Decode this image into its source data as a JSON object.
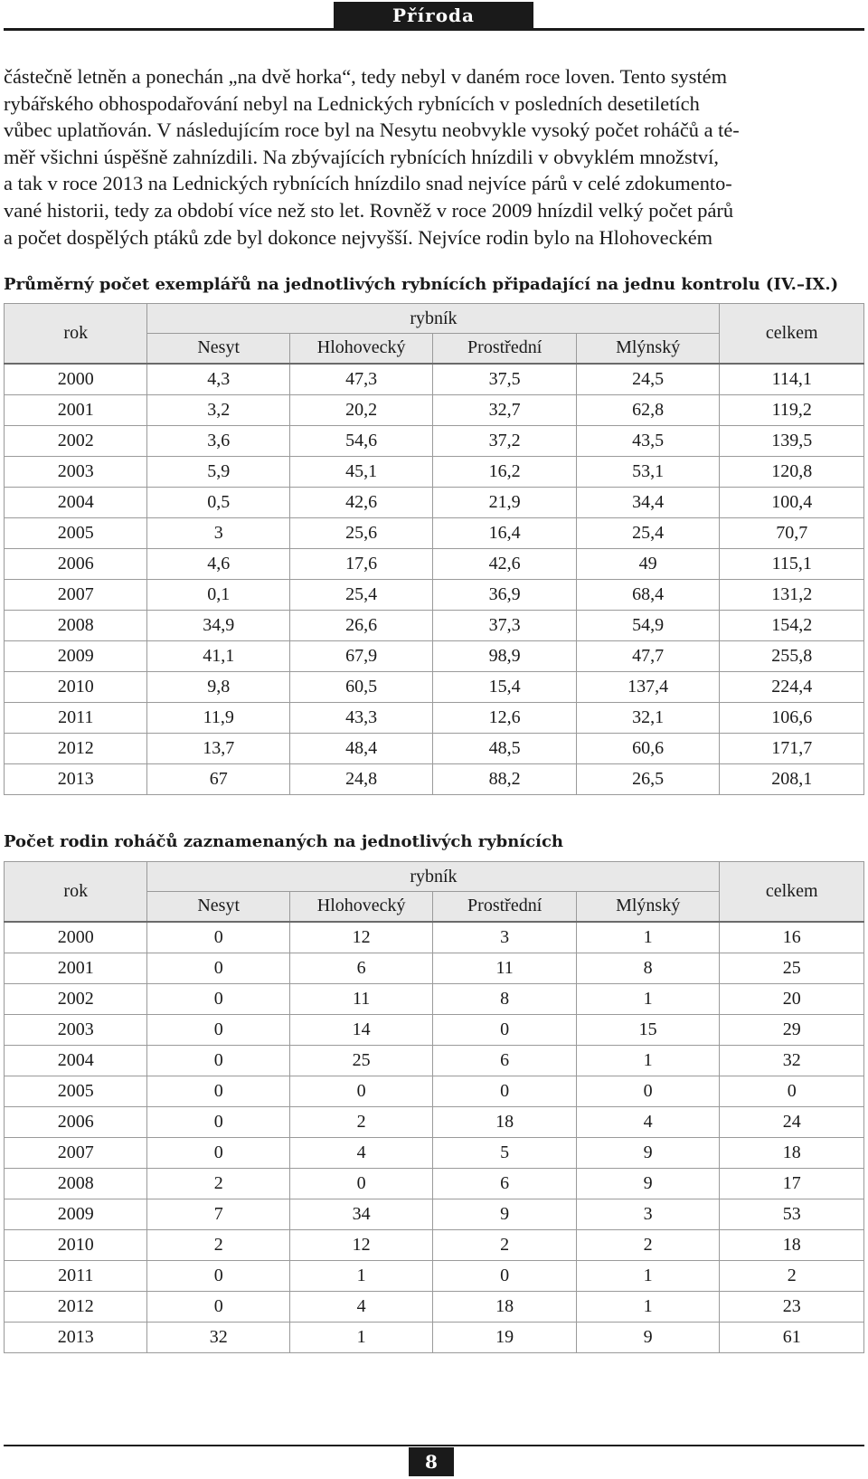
{
  "header": {
    "section_title": "Příroda"
  },
  "body_text": {
    "lines": [
      "částečně letněn a ponechán „na dvě horka“, tedy nebyl v daném roce loven. Tento systém",
      "rybářského obhospodařování nebyl na Lednických rybnících v posledních desetiletích",
      "vůbec uplatňován. V následujícím roce byl na Nesytu neobvykle vysoký počet roháčů a té-",
      "měř všichni úspěšně zahnízdili. Na zbývajících rybnících hnízdili v obvyklém množství,",
      "a tak v roce 2013 na Lednických rybnících hnízdilo snad nejvíce párů v celé zdokumento-",
      "vané historii, tedy za období více než sto let. Rovněž v roce 2009 hnízdil velký počet párů",
      "a počet dospělých ptáků zde byl dokonce nejvyšší. Nejvíce rodin bylo na Hlohoveckém"
    ]
  },
  "table1": {
    "title": "Průměrný počet exemplářů na jednotlivých rybnících připadající na jednu kontrolu (IV.–IX.)",
    "header": {
      "rok": "rok",
      "rybnik": "rybník",
      "celkem": "celkem",
      "ponds": [
        "Nesyt",
        "Hlohovecký",
        "Prostřední",
        "Mlýnský"
      ]
    },
    "rows": [
      [
        "2000",
        "4,3",
        "47,3",
        "37,5",
        "24,5",
        "114,1"
      ],
      [
        "2001",
        "3,2",
        "20,2",
        "32,7",
        "62,8",
        "119,2"
      ],
      [
        "2002",
        "3,6",
        "54,6",
        "37,2",
        "43,5",
        "139,5"
      ],
      [
        "2003",
        "5,9",
        "45,1",
        "16,2",
        "53,1",
        "120,8"
      ],
      [
        "2004",
        "0,5",
        "42,6",
        "21,9",
        "34,4",
        "100,4"
      ],
      [
        "2005",
        "3",
        "25,6",
        "16,4",
        "25,4",
        "70,7"
      ],
      [
        "2006",
        "4,6",
        "17,6",
        "42,6",
        "49",
        "115,1"
      ],
      [
        "2007",
        "0,1",
        "25,4",
        "36,9",
        "68,4",
        "131,2"
      ],
      [
        "2008",
        "34,9",
        "26,6",
        "37,3",
        "54,9",
        "154,2"
      ],
      [
        "2009",
        "41,1",
        "67,9",
        "98,9",
        "47,7",
        "255,8"
      ],
      [
        "2010",
        "9,8",
        "60,5",
        "15,4",
        "137,4",
        "224,4"
      ],
      [
        "2011",
        "11,9",
        "43,3",
        "12,6",
        "32,1",
        "106,6"
      ],
      [
        "2012",
        "13,7",
        "48,4",
        "48,5",
        "60,6",
        "171,7"
      ],
      [
        "2013",
        "67",
        "24,8",
        "88,2",
        "26,5",
        "208,1"
      ]
    ]
  },
  "table2": {
    "title": "Počet rodin roháčů zaznamenaných na jednotlivých rybnících",
    "header": {
      "rok": "rok",
      "rybnik": "rybník",
      "celkem": "celkem",
      "ponds": [
        "Nesyt",
        "Hlohovecký",
        "Prostřední",
        "Mlýnský"
      ]
    },
    "rows": [
      [
        "2000",
        "0",
        "12",
        "3",
        "1",
        "16"
      ],
      [
        "2001",
        "0",
        "6",
        "11",
        "8",
        "25"
      ],
      [
        "2002",
        "0",
        "11",
        "8",
        "1",
        "20"
      ],
      [
        "2003",
        "0",
        "14",
        "0",
        "15",
        "29"
      ],
      [
        "2004",
        "0",
        "25",
        "6",
        "1",
        "32"
      ],
      [
        "2005",
        "0",
        "0",
        "0",
        "0",
        "0"
      ],
      [
        "2006",
        "0",
        "2",
        "18",
        "4",
        "24"
      ],
      [
        "2007",
        "0",
        "4",
        "5",
        "9",
        "18"
      ],
      [
        "2008",
        "2",
        "0",
        "6",
        "9",
        "17"
      ],
      [
        "2009",
        "7",
        "34",
        "9",
        "3",
        "53"
      ],
      [
        "2010",
        "2",
        "12",
        "2",
        "2",
        "18"
      ],
      [
        "2011",
        "0",
        "1",
        "0",
        "1",
        "2"
      ],
      [
        "2012",
        "0",
        "4",
        "18",
        "1",
        "23"
      ],
      [
        "2013",
        "32",
        "1",
        "19",
        "9",
        "61"
      ]
    ]
  },
  "footer": {
    "page_number": "8"
  }
}
